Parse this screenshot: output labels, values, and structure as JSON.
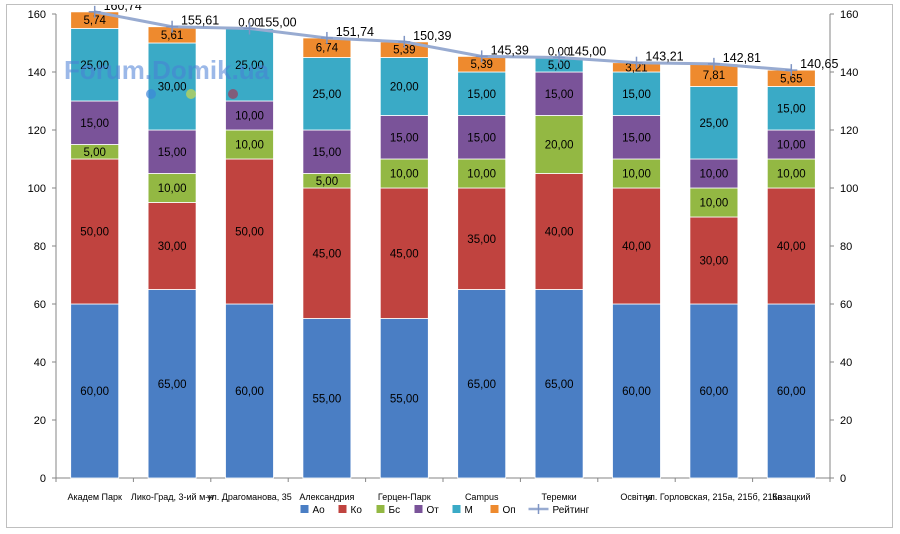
{
  "chart_data": {
    "type": "bar",
    "stacked": true,
    "categories": [
      "Академ Парк",
      "Лико-Град, 3-ий м-н",
      "ул. Драгоманова, 35",
      "Александрия",
      "Герцен-Парк",
      "Campus",
      "Теремки",
      "Освітня",
      "ул. Горловская, 215а, 215б, 215в",
      "Казацкий"
    ],
    "series": [
      {
        "name": "Ао",
        "color": "#4a7ec4",
        "values": [
          60,
          65,
          60,
          55,
          55,
          65,
          65,
          60,
          60,
          60
        ]
      },
      {
        "name": "Ко",
        "color": "#c0433f",
        "values": [
          50,
          30,
          50,
          45,
          45,
          35,
          40,
          40,
          30,
          40
        ]
      },
      {
        "name": "Бс",
        "color": "#93b843",
        "values": [
          5,
          10,
          10,
          5,
          10,
          10,
          20,
          10,
          10,
          10
        ]
      },
      {
        "name": "От",
        "color": "#7a5399",
        "values": [
          15,
          15,
          10,
          15,
          15,
          15,
          15,
          15,
          10,
          10
        ]
      },
      {
        "name": "М",
        "color": "#3aaac6",
        "values": [
          25,
          30,
          25,
          25,
          20,
          15,
          5,
          15,
          25,
          15
        ]
      },
      {
        "name": "Оп",
        "color": "#ee8a2e",
        "values": [
          5.74,
          5.61,
          0,
          6.74,
          5.39,
          5.39,
          0,
          3.21,
          7.81,
          5.65
        ]
      }
    ],
    "line_series": {
      "name": "Рейтинг",
      "color": "#98abd1",
      "values": [
        160.74,
        155.61,
        155.0,
        151.74,
        150.39,
        145.39,
        145.0,
        143.21,
        142.81,
        140.65
      ],
      "labels": [
        "160,74",
        "155,61",
        "155,00",
        "151,74",
        "150,39",
        "145,39",
        "145,00",
        "143,21",
        "142,81",
        "140,65"
      ]
    },
    "segment_labels": [
      [
        "60,00",
        "50,00",
        "5,00",
        "15,00",
        "25,00",
        "5,74"
      ],
      [
        "65,00",
        "30,00",
        "10,00",
        "15,00",
        "30,00",
        "5,61"
      ],
      [
        "60,00",
        "50,00",
        "10,00",
        "10,00",
        "25,00",
        "0,00"
      ],
      [
        "55,00",
        "45,00",
        "5,00",
        "15,00",
        "25,00",
        "6,74"
      ],
      [
        "55,00",
        "45,00",
        "10,00",
        "15,00",
        "20,00",
        "5,39"
      ],
      [
        "65,00",
        "35,00",
        "10,00",
        "15,00",
        "15,00",
        "5,39"
      ],
      [
        "65,00",
        "40,00",
        "20,00",
        "15,00",
        "5,00",
        "0,00"
      ],
      [
        "60,00",
        "40,00",
        "10,00",
        "15,00",
        "15,00",
        "3,21"
      ],
      [
        "60,00",
        "30,00",
        "10,00",
        "10,00",
        "25,00",
        "7,81"
      ],
      [
        "60,00",
        "40,00",
        "10,00",
        "10,00",
        "15,00",
        "5,65"
      ]
    ],
    "y_left": {
      "min": 0,
      "max": 160,
      "ticks": [
        "0",
        "20",
        "40",
        "60",
        "80",
        "100",
        "120",
        "140",
        "160"
      ]
    },
    "y_right": {
      "min": 0,
      "max": 160,
      "ticks": [
        "0",
        "20",
        "40",
        "60",
        "80",
        "100",
        "120",
        "140",
        "160"
      ]
    },
    "grid": false,
    "legend_position": "bottom"
  },
  "watermark": "Forum.Domik.ua"
}
